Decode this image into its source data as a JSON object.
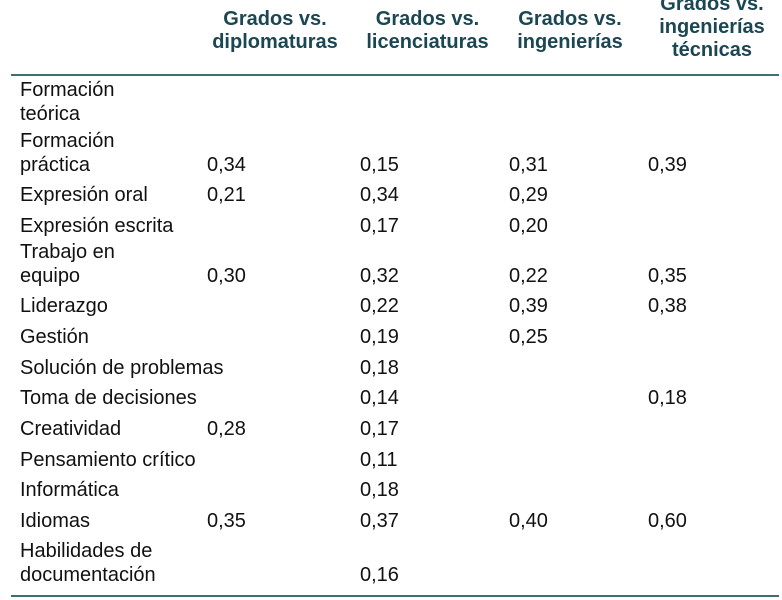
{
  "table": {
    "headers": [
      "Grados vs.\ndiplomaturas",
      "Grados vs.\nlicenciaturas",
      "Grados vs.\ningenierías",
      "Grados vs.\ningenierías\ntécnicas"
    ],
    "rows": [
      {
        "label": "Formación\nteórica",
        "values": [
          "",
          "",
          "",
          ""
        ]
      },
      {
        "label": "Formación\npráctica",
        "values": [
          "0,34",
          "0,15",
          "0,31",
          "0,39"
        ]
      },
      {
        "label": "Expresión oral",
        "values": [
          "0,21",
          "0,34",
          "0,29",
          ""
        ]
      },
      {
        "label": "Expresión escrita",
        "values": [
          "",
          "0,17",
          "0,20",
          ""
        ]
      },
      {
        "label": "Trabajo en\nequipo",
        "values": [
          "0,30",
          "0,32",
          "0,22",
          "0,35"
        ]
      },
      {
        "label": "Liderazgo",
        "values": [
          "",
          "0,22",
          "0,39",
          "0,38"
        ]
      },
      {
        "label": "Gestión",
        "values": [
          "",
          "0,19",
          "0,25",
          ""
        ]
      },
      {
        "label": "Solución de problemas",
        "values": [
          "",
          "0,18",
          "",
          ""
        ]
      },
      {
        "label": "Toma de decisiones",
        "values": [
          "",
          "0,14",
          "",
          "0,18"
        ]
      },
      {
        "label": "Creatividad",
        "values": [
          "0,28",
          "0,17",
          "",
          ""
        ]
      },
      {
        "label": "Pensamiento crítico",
        "values": [
          "",
          "0,11",
          "",
          ""
        ]
      },
      {
        "label": "Informática",
        "values": [
          "",
          "0,18",
          "",
          ""
        ]
      },
      {
        "label": "Idiomas",
        "values": [
          "0,35",
          "0,37",
          "0,40",
          "0,60"
        ]
      },
      {
        "label": "Habilidades de\ndocumentación",
        "values": [
          "",
          "0,16",
          "",
          ""
        ]
      }
    ]
  }
}
